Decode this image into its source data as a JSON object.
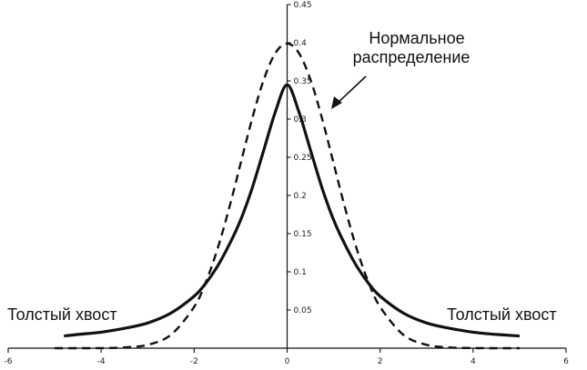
{
  "chart_data": {
    "type": "line",
    "title": "",
    "xlabel": "",
    "ylabel": "",
    "xlim": [
      -6,
      6
    ],
    "ylim": [
      0,
      0.45
    ],
    "x_ticks": [
      -6,
      -4,
      -2,
      0,
      2,
      4,
      6
    ],
    "x_tick_labels": [
      "-6",
      "-4",
      "-2",
      "0",
      "2",
      "4",
      "6"
    ],
    "y_ticks": [
      0.05,
      0.1,
      0.15,
      0.2,
      0.25,
      0.3,
      0.35,
      0.4,
      0.45
    ],
    "y_tick_labels": [
      "0.05",
      "0.1",
      "0.15",
      "0.2",
      "0.25",
      "0.3",
      "0.35",
      "0.4",
      "0.45"
    ],
    "grid": false,
    "legend": "none",
    "series": [
      {
        "key": "normal",
        "style": "dashed",
        "x": [
          -5,
          -4.5,
          -4,
          -3.5,
          -3,
          -2.5,
          -2,
          -1.75,
          -1.5,
          -1.25,
          -1,
          -0.75,
          -0.5,
          -0.25,
          0,
          0.25,
          0.5,
          0.75,
          1,
          1.25,
          1.5,
          1.75,
          2,
          2.5,
          3,
          3.5,
          4,
          4.5,
          5
        ],
        "y": [
          0.0,
          0.0,
          0.0001,
          0.0009,
          0.0044,
          0.0175,
          0.054,
          0.0863,
          0.1295,
          0.1826,
          0.242,
          0.3011,
          0.3521,
          0.3867,
          0.3989,
          0.3867,
          0.3521,
          0.3011,
          0.242,
          0.1826,
          0.1295,
          0.0863,
          0.054,
          0.0175,
          0.0044,
          0.0009,
          0.0001,
          0.0,
          0.0
        ]
      },
      {
        "key": "fat_tail",
        "style": "solid",
        "x": [
          -4.8,
          -4.5,
          -4,
          -3.5,
          -3,
          -2.5,
          -2,
          -1.75,
          -1.5,
          -1.25,
          -1,
          -0.75,
          -0.5,
          -0.25,
          0,
          0.25,
          0.5,
          0.75,
          1,
          1.25,
          1.5,
          1.75,
          2,
          2.5,
          3,
          3.5,
          4,
          4.5,
          5
        ],
        "y": [
          0.016,
          0.018,
          0.021,
          0.026,
          0.033,
          0.046,
          0.068,
          0.085,
          0.107,
          0.135,
          0.168,
          0.21,
          0.26,
          0.31,
          0.345,
          0.31,
          0.26,
          0.21,
          0.168,
          0.135,
          0.107,
          0.085,
          0.068,
          0.046,
          0.033,
          0.026,
          0.021,
          0.018,
          0.016
        ]
      }
    ],
    "annotations": {
      "normal_line1": "Нормальное",
      "normal_line2": "распределение",
      "tail_left": "Толстый хвост",
      "tail_right": "Толстый хвост"
    }
  }
}
